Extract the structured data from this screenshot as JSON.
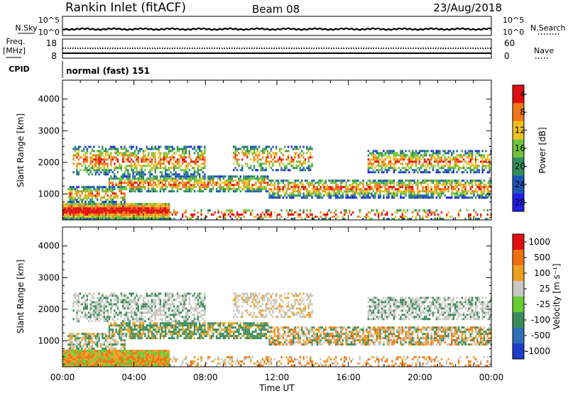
{
  "header": {
    "station": "Rankin Inlet (fitACF)",
    "beam": "Beam 08",
    "date": "23/Aug/2018"
  },
  "panels": {
    "noise": {
      "left_label": "N.Sky",
      "right_label": "N.Search",
      "left_ticks": [
        "10^5",
        "10^0"
      ],
      "right_ticks": [
        "10^5",
        "10^0"
      ]
    },
    "freq": {
      "left_label_line1": "Freq.",
      "left_label_line2": "[MHz]",
      "right_label": "Nave",
      "left_ticks": [
        "18",
        "8"
      ],
      "right_ticks": [
        "60",
        "0"
      ]
    },
    "cpid": {
      "label": "CPID",
      "text": "normal (fast) 151"
    }
  },
  "chart_data": [
    {
      "type": "heatmap",
      "name": "power",
      "ylabel": "Slant Range [km]",
      "ylim": [
        180,
        4600
      ],
      "yticks": [
        1000,
        2000,
        3000,
        4000
      ],
      "xlim": [
        0,
        24
      ],
      "colorbar": {
        "label": "Power [dB]",
        "ticks": [
          "4",
          "8",
          "12",
          "16",
          "20",
          "24",
          "28"
        ],
        "colors": [
          "#1e1ee6",
          "#1a55b8",
          "#2f8f5a",
          "#6fc43a",
          "#f0c020",
          "#f07818",
          "#e01010"
        ]
      }
    },
    {
      "type": "heatmap",
      "name": "velocity",
      "ylabel": "Slant Range [km]",
      "ylim": [
        180,
        4600
      ],
      "yticks": [
        1000,
        2000,
        3000,
        4000
      ],
      "xlim": [
        0,
        24
      ],
      "xlabel": "Time UT",
      "xticks": [
        "00:00",
        "04:00",
        "08:00",
        "12:00",
        "16:00",
        "20:00",
        "00:00"
      ],
      "colorbar": {
        "label": "Velocity [m s⁻¹]",
        "ticks": [
          "1000",
          "500",
          "100",
          "25",
          "-25",
          "-100",
          "-500",
          "-1000"
        ],
        "colors": [
          "#1e3cc8",
          "#2e6fb8",
          "#3a8c5a",
          "#66cc33",
          "#c8c8c0",
          "#f0a020",
          "#f07010",
          "#e01010"
        ]
      }
    }
  ]
}
